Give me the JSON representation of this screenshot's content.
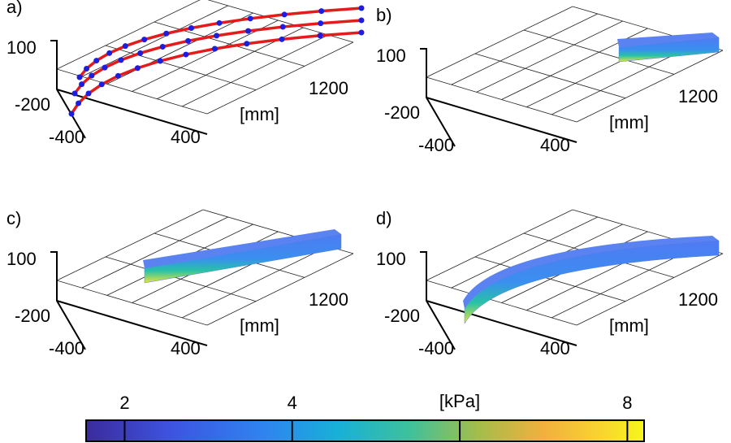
{
  "chart_data": {
    "type": "figure-3d-panels",
    "panels": [
      {
        "label": "a)",
        "zticks": [
          100
        ],
        "yticks": [
          -200,
          -400
        ],
        "xticks": [
          400,
          1200
        ],
        "xlabel": "[mm]"
      },
      {
        "label": "b)",
        "zticks": [
          100
        ],
        "yticks": [
          -200,
          -400
        ],
        "xticks": [
          400,
          1200
        ],
        "xlabel": "[mm]"
      },
      {
        "label": "c)",
        "zticks": [
          100
        ],
        "yticks": [
          -200,
          -400
        ],
        "xticks": [
          400,
          1200
        ],
        "xlabel": "[mm]"
      },
      {
        "label": "d)",
        "zticks": [
          100
        ],
        "yticks": [
          -200,
          -400
        ],
        "xticks": [
          400,
          1200
        ],
        "xlabel": "[mm]"
      }
    ],
    "colorbar": {
      "label": "[kPa]",
      "lim": [
        1.54,
        8.2
      ],
      "ticks": [
        2,
        4,
        8
      ],
      "minor_ticks": [
        6
      ]
    }
  }
}
